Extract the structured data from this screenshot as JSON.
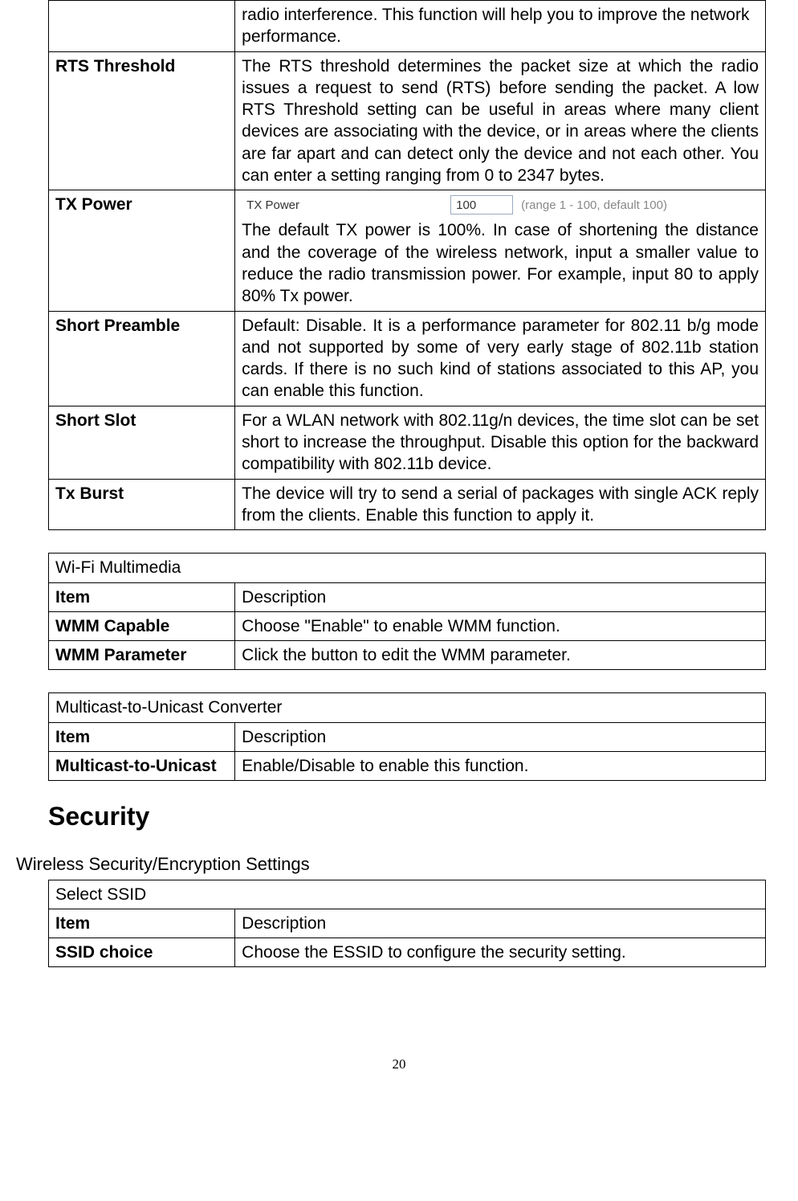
{
  "table1": {
    "rows": [
      {
        "label": "",
        "desc": "radio interference. This function will help you to improve the network performance."
      },
      {
        "label": "RTS Threshold",
        "desc": "The RTS threshold determines the packet size at which the radio issues a request to send (RTS) before sending the packet. A low RTS Threshold setting can be useful in areas where many client devices are associating with the device, or in areas where the clients are far apart and can detect only the device and not each other. You can enter a setting ranging from 0 to 2347 bytes."
      },
      {
        "label": "TX Power",
        "widget": {
          "label": "TX Power",
          "value": "100",
          "range": "(range 1 - 100, default 100)"
        },
        "desc": "The default TX power is 100%. In case of shortening the distance and the coverage of the wireless network, input a smaller value to reduce the radio transmission power. For example, input 80 to apply 80% Tx power."
      },
      {
        "label": "Short Preamble",
        "desc": "Default: Disable. It is a performance parameter for 802.11 b/g mode and not supported by some of very early stage of 802.11b station cards. If there is no such kind of stations associated to this AP, you can enable this function."
      },
      {
        "label": "Short Slot",
        "desc": "For a WLAN network with 802.11g/n devices, the time slot can be set short to increase the throughput. Disable this option for the backward compatibility with 802.11b device."
      },
      {
        "label": "Tx Burst",
        "desc": "The device will try to send a serial of packages with single ACK reply from the clients. Enable this function to apply it."
      }
    ]
  },
  "table2": {
    "title": "Wi-Fi Multimedia",
    "header": {
      "item": "Item",
      "desc": "Description"
    },
    "rows": [
      {
        "label": "WMM Capable",
        "desc": "Choose \"Enable\" to enable WMM function."
      },
      {
        "label": "WMM Parameter",
        "desc": "Click the button to edit the WMM parameter."
      }
    ]
  },
  "table3": {
    "title": "Multicast-to-Unicast Converter",
    "header": {
      "item": "Item",
      "desc": "Description"
    },
    "rows": [
      {
        "label": "Multicast-to-Unicast",
        "desc": "Enable/Disable to enable this function."
      }
    ]
  },
  "security": {
    "heading": "Security",
    "subheading": "Wireless Security/Encryption Settings"
  },
  "table4": {
    "title": "Select SSID",
    "header": {
      "item": "Item",
      "desc": "Description"
    },
    "rows": [
      {
        "label": "SSID choice",
        "desc": "Choose the ESSID to configure the security setting."
      }
    ]
  },
  "page_number": "20"
}
